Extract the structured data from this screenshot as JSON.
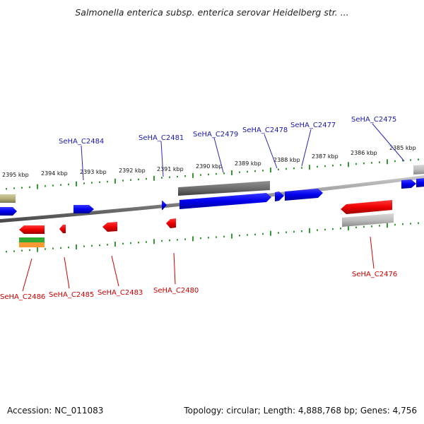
{
  "title": "Salmonella enterica subsp. enterica serovar Heidelberg str. ...",
  "footer": {
    "accession": "Accession: NC_011083",
    "summary": "Topology: circular; Length: 4,888,768 bp; Genes: 4,756"
  },
  "colors": {
    "forward_gene": "#0000ee",
    "reverse_gene": "#ee0000",
    "scale_ticks": "#339933",
    "backbone": "#8c8c8c",
    "grey_feature": "#6e6e6e",
    "light_grey_feature": "#bdbdbd",
    "olive_feature": "#b5b07a",
    "green_feature": "#33aa33",
    "orange_feature": "#ff9933",
    "forward_label": "#1a1aaa",
    "reverse_label": "#cc0000"
  },
  "scale_labels": [
    "2395 kbp",
    "2394 kbp",
    "2393 kbp",
    "2392 kbp",
    "2391 kbp",
    "2390 kbp",
    "2389 kbp",
    "2388 kbp",
    "2387 kbp",
    "2386 kbp",
    "2385 kbp"
  ],
  "gene_labels_forward": [
    "SeHA_C2484",
    "SeHA_C2481",
    "SeHA_C2479",
    "SeHA_C2478",
    "SeHA_C2477",
    "SeHA_C2475"
  ],
  "gene_labels_reverse": [
    "SeHA_C2486",
    "SeHA_C2485",
    "SeHA_C2483",
    "SeHA_C2480",
    "SeHA_C2476"
  ]
}
